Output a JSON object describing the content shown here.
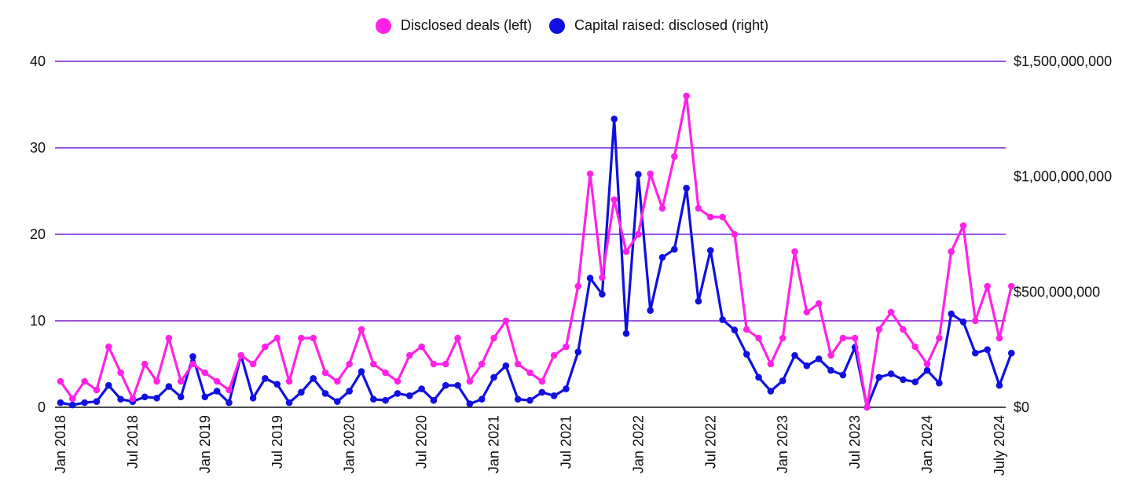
{
  "chart_data": {
    "type": "line",
    "title": "",
    "legend_position": "top-center",
    "legend": [
      {
        "name": "Disclosed deals (left)",
        "color": "#ff22e6"
      },
      {
        "name": "Capital raised: disclosed (right)",
        "color": "#1010e0"
      }
    ],
    "colors": {
      "grid": "#7a1fd6",
      "baseline": "#111111",
      "deals": "#ff22e6",
      "capital": "#1010e0"
    },
    "left_axis": {
      "label": "",
      "ylim": [
        0,
        40
      ],
      "ticks": [
        "0",
        "10",
        "20",
        "30",
        "40"
      ]
    },
    "right_axis": {
      "label": "",
      "ylim": [
        0,
        1500000000
      ],
      "ticks": [
        "$0",
        "$500,000,000",
        "$1,000,000,000",
        "$1,500,000,000"
      ]
    },
    "grid": true,
    "x_start": "Jan 2018",
    "x_tick_labels": [
      "Jan 2018",
      "Jul 2018",
      "Jan 2019",
      "Jul 2019",
      "Jan 2020",
      "Jul 2020",
      "Jan 2021",
      "Jul 2021",
      "Jan 2022",
      "Jul 2022",
      "Jan 2023",
      "Jul 2023",
      "Jan 2024",
      "July 2024"
    ],
    "series": [
      {
        "name": "Disclosed deals (left)",
        "axis": "left",
        "values": [
          3,
          1,
          3,
          2,
          7,
          4,
          1,
          5,
          3,
          8,
          3,
          5,
          4,
          3,
          2,
          6,
          5,
          7,
          8,
          3,
          8,
          8,
          4,
          3,
          5,
          9,
          5,
          4,
          3,
          6,
          7,
          5,
          5,
          8,
          3,
          5,
          8,
          10,
          5,
          4,
          3,
          6,
          7,
          14,
          27,
          15,
          24,
          18,
          20,
          27,
          23,
          29,
          36,
          23,
          22,
          22,
          20,
          9,
          8,
          5,
          8,
          18,
          11,
          12,
          6,
          8,
          8,
          0,
          9,
          11,
          9,
          7,
          5,
          8,
          18,
          21,
          10,
          14,
          8,
          14
        ]
      },
      {
        "name": "Capital raised: disclosed (right)",
        "axis": "right",
        "values": [
          20000000,
          10000000,
          20000000,
          25000000,
          95000000,
          35000000,
          25000000,
          45000000,
          40000000,
          90000000,
          45000000,
          220000000,
          45000000,
          70000000,
          20000000,
          225000000,
          40000000,
          125000000,
          100000000,
          20000000,
          65000000,
          125000000,
          60000000,
          25000000,
          70000000,
          155000000,
          35000000,
          30000000,
          60000000,
          50000000,
          80000000,
          30000000,
          95000000,
          95000000,
          15000000,
          35000000,
          130000000,
          180000000,
          35000000,
          30000000,
          65000000,
          50000000,
          80000000,
          240000000,
          560000000,
          490000000,
          1250000000,
          320000000,
          1010000000,
          420000000,
          650000000,
          685000000,
          950000000,
          460000000,
          680000000,
          380000000,
          335000000,
          230000000,
          130000000,
          70000000,
          115000000,
          225000000,
          180000000,
          210000000,
          160000000,
          140000000,
          260000000,
          0,
          130000000,
          145000000,
          120000000,
          110000000,
          160000000,
          105000000,
          405000000,
          370000000,
          235000000,
          250000000,
          95000000,
          235000000
        ]
      }
    ]
  }
}
